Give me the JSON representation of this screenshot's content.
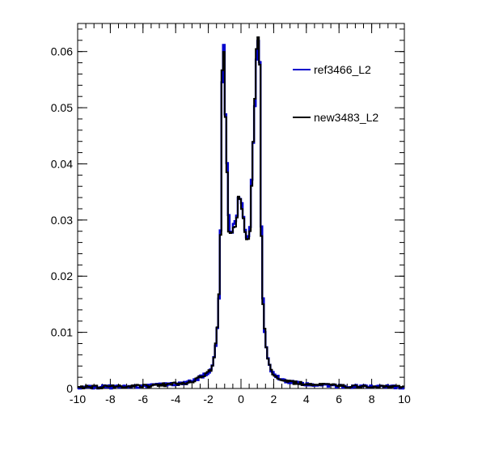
{
  "chart_data": {
    "type": "line",
    "style": "step-histogram",
    "title": "",
    "xlabel": "",
    "ylabel": "",
    "xlim": [
      -10,
      10
    ],
    "ylim": [
      0,
      0.065
    ],
    "x_ticks": [
      -10,
      -8,
      -6,
      -4,
      -2,
      0,
      2,
      4,
      6,
      8,
      10
    ],
    "x_tick_labels": [
      "-10",
      "-8",
      "-6",
      "-4",
      "-2",
      "0",
      "2",
      "4",
      "6",
      "8",
      "10"
    ],
    "y_ticks": [
      0,
      0.01,
      0.02,
      0.03,
      0.04,
      0.05,
      0.06
    ],
    "y_tick_labels": [
      "0",
      "0.01",
      "0.02",
      "0.03",
      "0.04",
      "0.05",
      "0.06"
    ],
    "grid": false,
    "legend_position": "top-right",
    "bins": {
      "low": -10,
      "high": 10,
      "count": 200
    },
    "series": [
      {
        "name": "ref3466_L2",
        "color": "#0000cc",
        "shape": [
          [
            -10,
            0.0002
          ],
          [
            -8,
            0.0003
          ],
          [
            -6,
            0.0004
          ],
          [
            -4,
            0.0008
          ],
          [
            -3,
            0.0012
          ],
          [
            -2.5,
            0.002
          ],
          [
            -2,
            0.0028
          ],
          [
            -1.8,
            0.0035
          ],
          [
            -1.6,
            0.006
          ],
          [
            -1.4,
            0.012
          ],
          [
            -1.3,
            0.02
          ],
          [
            -1.2,
            0.036
          ],
          [
            -1.15,
            0.055
          ],
          [
            -1.1,
            0.0625
          ],
          [
            -1.05,
            0.061
          ],
          [
            -1.0,
            0.051
          ],
          [
            -0.95,
            0.049
          ],
          [
            -0.85,
            0.04
          ],
          [
            -0.75,
            0.031
          ],
          [
            -0.65,
            0.028
          ],
          [
            -0.55,
            0.028
          ],
          [
            -0.45,
            0.029
          ],
          [
            -0.35,
            0.0295
          ],
          [
            -0.25,
            0.031
          ],
          [
            -0.15,
            0.034
          ],
          [
            -0.05,
            0.034
          ],
          [
            0.05,
            0.0325
          ],
          [
            0.15,
            0.031
          ],
          [
            0.25,
            0.0285
          ],
          [
            0.35,
            0.0265
          ],
          [
            0.45,
            0.027
          ],
          [
            0.55,
            0.029
          ],
          [
            0.65,
            0.037
          ],
          [
            0.75,
            0.044
          ],
          [
            0.85,
            0.05
          ],
          [
            0.95,
            0.059
          ],
          [
            1.05,
            0.062
          ],
          [
            1.1,
            0.0635
          ],
          [
            1.15,
            0.058
          ],
          [
            1.2,
            0.037
          ],
          [
            1.3,
            0.02
          ],
          [
            1.4,
            0.011
          ],
          [
            1.6,
            0.006
          ],
          [
            1.8,
            0.0035
          ],
          [
            2.0,
            0.0025
          ],
          [
            2.5,
            0.0015
          ],
          [
            3,
            0.0011
          ],
          [
            4,
            0.0008
          ],
          [
            6,
            0.0004
          ],
          [
            8,
            0.0003
          ],
          [
            10,
            0.0002
          ]
        ]
      },
      {
        "name": "new3483_L2",
        "color": "#000000",
        "shape": [
          [
            -10,
            0.0002
          ],
          [
            -8,
            0.0003
          ],
          [
            -6,
            0.0004
          ],
          [
            -4,
            0.0008
          ],
          [
            -3,
            0.0012
          ],
          [
            -2.5,
            0.002
          ],
          [
            -2,
            0.0028
          ],
          [
            -1.8,
            0.0036
          ],
          [
            -1.6,
            0.0062
          ],
          [
            -1.4,
            0.0125
          ],
          [
            -1.3,
            0.0205
          ],
          [
            -1.2,
            0.035
          ],
          [
            -1.15,
            0.057
          ],
          [
            -1.1,
            0.0625
          ],
          [
            -1.05,
            0.0595
          ],
          [
            -1.0,
            0.0505
          ],
          [
            -0.95,
            0.048
          ],
          [
            -0.85,
            0.038
          ],
          [
            -0.75,
            0.0285
          ],
          [
            -0.65,
            0.0278
          ],
          [
            -0.55,
            0.0272
          ],
          [
            -0.45,
            0.0285
          ],
          [
            -0.35,
            0.029
          ],
          [
            -0.25,
            0.0305
          ],
          [
            -0.15,
            0.0337
          ],
          [
            -0.05,
            0.0338
          ],
          [
            0.05,
            0.032
          ],
          [
            0.15,
            0.0305
          ],
          [
            0.25,
            0.028
          ],
          [
            0.35,
            0.026
          ],
          [
            0.45,
            0.0262
          ],
          [
            0.55,
            0.0285
          ],
          [
            0.65,
            0.036
          ],
          [
            0.75,
            0.0435
          ],
          [
            0.85,
            0.0515
          ],
          [
            0.95,
            0.06
          ],
          [
            1.05,
            0.0625
          ],
          [
            1.1,
            0.064
          ],
          [
            1.15,
            0.0575
          ],
          [
            1.2,
            0.036
          ],
          [
            1.3,
            0.0195
          ],
          [
            1.4,
            0.0115
          ],
          [
            1.6,
            0.006
          ],
          [
            1.8,
            0.0036
          ],
          [
            2.0,
            0.0025
          ],
          [
            2.5,
            0.0015
          ],
          [
            3,
            0.0011
          ],
          [
            4,
            0.0008
          ],
          [
            6,
            0.0004
          ],
          [
            8,
            0.0003
          ],
          [
            10,
            0.0002
          ]
        ]
      }
    ]
  }
}
